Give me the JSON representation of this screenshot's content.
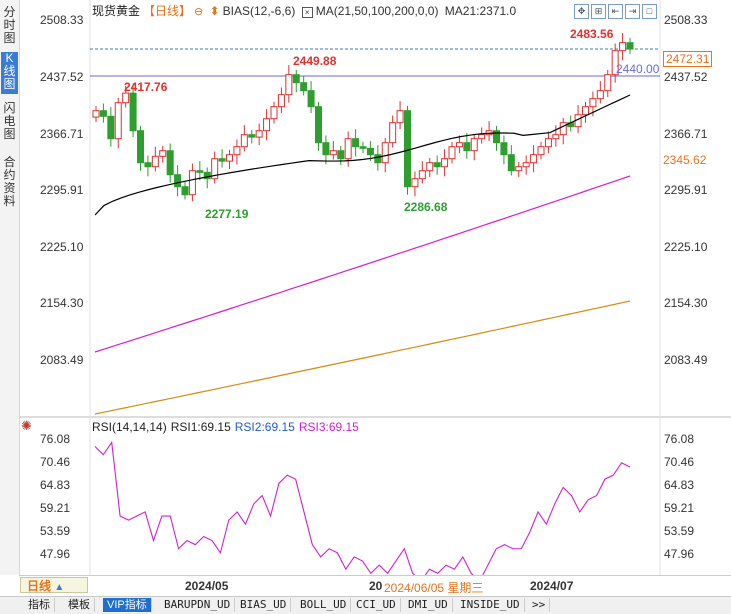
{
  "left_tabs": [
    "分时图",
    "K线图",
    "闪电图",
    "合约资料"
  ],
  "left_tabs_active": 1,
  "header": {
    "title": "现货黄金",
    "period": "【日线】",
    "bias_label": "BIAS(12,-6,6)",
    "ma_label": "MA(21,50,100,200,0,0)",
    "ma21_value": "MA21:2371.0"
  },
  "toolbar_icons": [
    "crosshair-icon",
    "split-icon",
    "back-icon",
    "forward-icon",
    "maximize-icon"
  ],
  "price_axis": [
    "2508.33",
    "2437.52",
    "2366.71",
    "2295.91",
    "2225.10",
    "2154.30",
    "2083.49"
  ],
  "price_annotations": {
    "high_label": "2483.56",
    "current_price": "2472.31",
    "ma_price": "2345.62",
    "cursor_price": "2440.00",
    "peak1": "2417.76",
    "peak2": "2449.88",
    "low1": "2277.19",
    "low2": "2286.68"
  },
  "rsi": {
    "label": "RSI(14,14,14)",
    "rsi1": "RSI1:69.15",
    "rsi2": "RSI2:69.15",
    "rsi3": "RSI3:69.15",
    "axis": [
      "76.08",
      "70.46",
      "64.83",
      "59.21",
      "53.59",
      "47.96"
    ]
  },
  "datebar": {
    "period": "日线",
    "arrow": "▲",
    "dates": [
      "2024/05",
      "20",
      "2024/07"
    ],
    "cursor_date": "2024/06/05 星期三"
  },
  "bottom_tabs": [
    "指标",
    "模板",
    "VIP指标",
    "BARUPDN_UD",
    "BIAS_UD",
    "BOLL_UD",
    "CCI_UD",
    "DMI_UD",
    "INSIDE_UD",
    ">>"
  ],
  "bottom_tabs_active": 2,
  "colors": {
    "up": "#e03030",
    "down": "#2e9e2e",
    "ma21": "#000000",
    "ma100": "#d020d0",
    "ma200": "#d68a10",
    "rsi": "#d020d0",
    "rsi2_text": "#1e5bd0",
    "rsi3_text": "#d020d0"
  }
}
